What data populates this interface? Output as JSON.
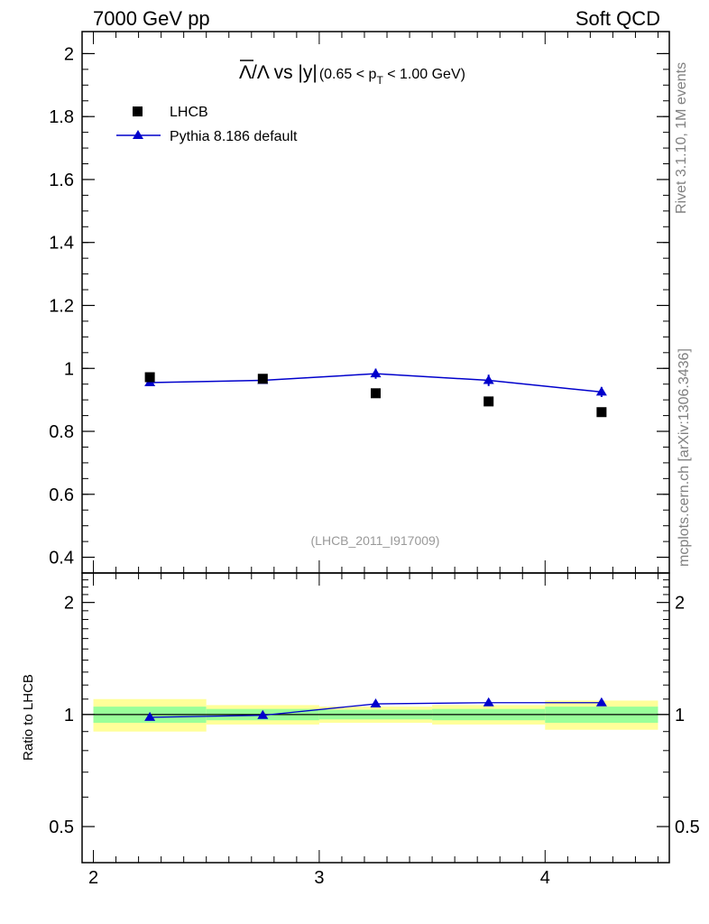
{
  "header": {
    "left": "7000 GeV pp",
    "right": "Soft QCD"
  },
  "side_text": {
    "top": "Rivet 3.1.10,  1M events",
    "bottom": "mcplots.cern.ch [arXiv:1306.3436]"
  },
  "watermark": "(LHCB_2011_I917009)",
  "title": {
    "main": "Λ/Λ vs |y|",
    "main_prefix": "Λ",
    "main_mid": "/Λ vs |y|",
    "range_pre": "(0.65 < p",
    "range_sub": "T",
    "range_post": " < 1.00 GeV)"
  },
  "colors": {
    "data": "#000000",
    "mc": "#0000cc",
    "band_inner": "#99ff99",
    "band_outer": "#ffff99"
  },
  "chart_data": [
    {
      "type": "scatter",
      "panel": "main",
      "xlim": [
        1.95,
        4.55
      ],
      "ylim": [
        0.35,
        2.07
      ],
      "yticks": [
        0.4,
        0.6,
        0.8,
        1,
        1.2,
        1.4,
        1.6,
        1.8,
        2
      ],
      "ytick_labels": [
        "0.4",
        "0.6",
        "0.8",
        "1",
        "1.2",
        "1.4",
        "1.6",
        "1.8",
        "2"
      ],
      "legend_position": "top-left",
      "series": [
        {
          "name": "LHCB",
          "marker": "square",
          "x": [
            2.25,
            2.75,
            3.25,
            3.75,
            4.25
          ],
          "y": [
            0.972,
            0.967,
            0.921,
            0.895,
            0.861
          ],
          "x_bins": [
            [
              2.0,
              2.5
            ],
            [
              2.5,
              3.0
            ],
            [
              3.0,
              3.5
            ],
            [
              3.5,
              4.0
            ],
            [
              4.0,
              4.5
            ]
          ]
        },
        {
          "name": "Pythia 8.186 default",
          "marker": "triangle",
          "line": true,
          "x": [
            2.25,
            2.75,
            3.25,
            3.75,
            4.25
          ],
          "y": [
            0.955,
            0.962,
            0.983,
            0.962,
            0.925
          ],
          "yerr": [
            0.008,
            0.008,
            0.016,
            0.018,
            0.016
          ]
        }
      ]
    },
    {
      "type": "scatter",
      "panel": "ratio",
      "ylabel": "Ratio to LHCB",
      "log_y": true,
      "xlim": [
        1.95,
        4.55
      ],
      "ylim": [
        0.4,
        2.4
      ],
      "xticks": [
        2,
        3,
        4
      ],
      "xtick_labels": [
        "2",
        "3",
        "4"
      ],
      "yticks": [
        0.5,
        1,
        2
      ],
      "ytick_labels": [
        "0.5",
        "1",
        "2"
      ],
      "bands": {
        "x_bins": [
          [
            2.0,
            2.5
          ],
          [
            2.5,
            3.0
          ],
          [
            3.0,
            3.5
          ],
          [
            3.5,
            4.0
          ],
          [
            4.0,
            4.5
          ]
        ],
        "inner": [
          [
            0.95,
            1.05
          ],
          [
            0.965,
            1.035
          ],
          [
            0.97,
            1.03
          ],
          [
            0.965,
            1.035
          ],
          [
            0.95,
            1.05
          ]
        ],
        "outer": [
          [
            0.9,
            1.1
          ],
          [
            0.94,
            1.06
          ],
          [
            0.95,
            1.05
          ],
          [
            0.94,
            1.06
          ],
          [
            0.91,
            1.09
          ]
        ]
      },
      "series": [
        {
          "name": "Pythia 8.186 default",
          "marker": "triangle",
          "line": true,
          "x": [
            2.25,
            2.75,
            3.25,
            3.75,
            4.25
          ],
          "y": [
            0.983,
            0.995,
            1.068,
            1.076,
            1.076
          ]
        }
      ]
    }
  ]
}
